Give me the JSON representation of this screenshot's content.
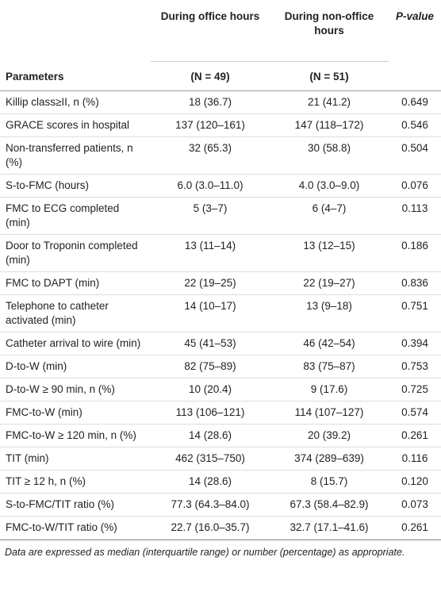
{
  "header": {
    "columns": [
      "During office hours",
      "During non-office hours",
      "P-value"
    ],
    "subheaders": [
      "Parameters",
      "(N = 49)",
      "(N = 51)"
    ]
  },
  "table": {
    "rows": [
      [
        "Killip class≥II, n (%)",
        "18 (36.7)",
        "21 (41.2)",
        "0.649"
      ],
      [
        "GRACE scores in hospital",
        "137 (120–161)",
        "147 (118–172)",
        "0.546"
      ],
      [
        "Non-transferred patients, n (%)",
        "32 (65.3)",
        "30 (58.8)",
        "0.504"
      ],
      [
        "S-to-FMC (hours)",
        "6.0 (3.0–11.0)",
        "4.0 (3.0–9.0)",
        "0.076"
      ],
      [
        "FMC to ECG completed (min)",
        "5 (3–7)",
        "6 (4–7)",
        "0.113"
      ],
      [
        "Door to Troponin completed (min)",
        "13 (11–14)",
        "13 (12–15)",
        "0.186"
      ],
      [
        "FMC to DAPT (min)",
        "22 (19–25)",
        "22 (19–27)",
        "0.836"
      ],
      [
        "Telephone to catheter activated (min)",
        "14 (10–17)",
        "13 (9–18)",
        "0.751"
      ],
      [
        "Catheter arrival to wire (min)",
        "45 (41–53)",
        "46 (42–54)",
        "0.394"
      ],
      [
        "D-to-W (min)",
        "82 (75–89)",
        "83 (75–87)",
        "0.753"
      ],
      [
        "D-to-W ≥ 90 min, n (%)",
        "10 (20.4)",
        "9 (17.6)",
        "0.725"
      ],
      [
        "FMC-to-W (min)",
        "113 (106–121)",
        "114 (107–127)",
        "0.574"
      ],
      [
        "FMC-to-W ≥ 120 min, n (%)",
        "14 (28.6)",
        "20 (39.2)",
        "0.261"
      ],
      [
        "TIT (min)",
        "462 (315–750)",
        "374 (289–639)",
        "0.116"
      ],
      [
        "TIT ≥ 12 h, n (%)",
        "14 (28.6)",
        "8 (15.7)",
        "0.120"
      ],
      [
        "S-to-FMC/TIT ratio (%)",
        "77.3 (64.3–84.0)",
        "67.3 (58.4–82.9)",
        "0.073"
      ],
      [
        "FMC-to-W/TIT ratio (%)",
        "22.7 (16.0–35.7)",
        "32.7 (17.1–41.6)",
        "0.261"
      ]
    ]
  },
  "footnote": "Data are expressed as median (interquartile range) or number (percentage) as appropriate."
}
